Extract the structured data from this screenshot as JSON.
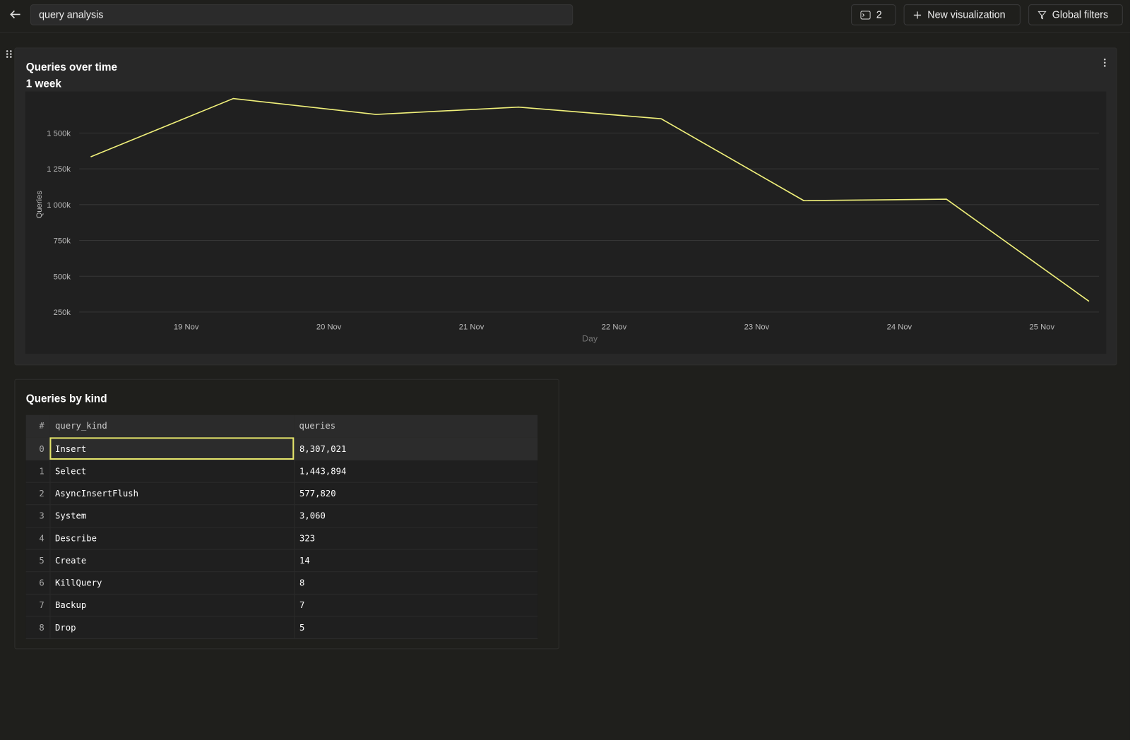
{
  "header": {
    "search": "query analysis",
    "count": 2,
    "new_visualization": "New visualization",
    "global_filters": "Global filters"
  },
  "chart_panel": {
    "title": "Queries over time",
    "subtitle": "1 week",
    "chart_data": {
      "type": "line",
      "x_label": "Day",
      "y_label": "Queries",
      "x": [
        18.33,
        19.33,
        20.33,
        21.33,
        22.33,
        23.33,
        24.33,
        25.33
      ],
      "values": [
        1334000,
        1741000,
        1630000,
        1681000,
        1600000,
        1028000,
        1038000,
        325000
      ],
      "color": "#f0f07a",
      "xlim": [
        18.25,
        25.4
      ],
      "xticks": [
        {
          "value": 19,
          "label": "19 Nov"
        },
        {
          "value": 20,
          "label": "20 Nov"
        },
        {
          "value": 21,
          "label": "21 Nov"
        },
        {
          "value": 22,
          "label": "22 Nov"
        },
        {
          "value": 23,
          "label": "23 Nov"
        },
        {
          "value": 24,
          "label": "24 Nov"
        },
        {
          "value": 25,
          "label": "25 Nov"
        }
      ],
      "ylim": [
        180000,
        1790000
      ],
      "yticks": [
        {
          "value": 250000,
          "label": "250k"
        },
        {
          "value": 500000,
          "label": "500k"
        },
        {
          "value": 750000,
          "label": "750k"
        },
        {
          "value": 1000000,
          "label": "1 000k"
        },
        {
          "value": 1250000,
          "label": "1 250k"
        },
        {
          "value": 1500000,
          "label": "1 500k"
        }
      ],
      "grid": true
    }
  },
  "table_panel": {
    "title": "Queries by kind",
    "table": {
      "columns": [
        "#",
        "query_kind",
        "queries"
      ],
      "rows": [
        [
          0,
          "Insert",
          "8,307,021"
        ],
        [
          1,
          "Select",
          "1,443,894"
        ],
        [
          2,
          "AsyncInsertFlush",
          "577,820"
        ],
        [
          3,
          "System",
          "3,060"
        ],
        [
          4,
          "Describe",
          "323"
        ],
        [
          5,
          "Create",
          "14"
        ],
        [
          6,
          "KillQuery",
          "8"
        ],
        [
          7,
          "Backup",
          "7"
        ],
        [
          8,
          "Drop",
          "5"
        ]
      ]
    }
  }
}
